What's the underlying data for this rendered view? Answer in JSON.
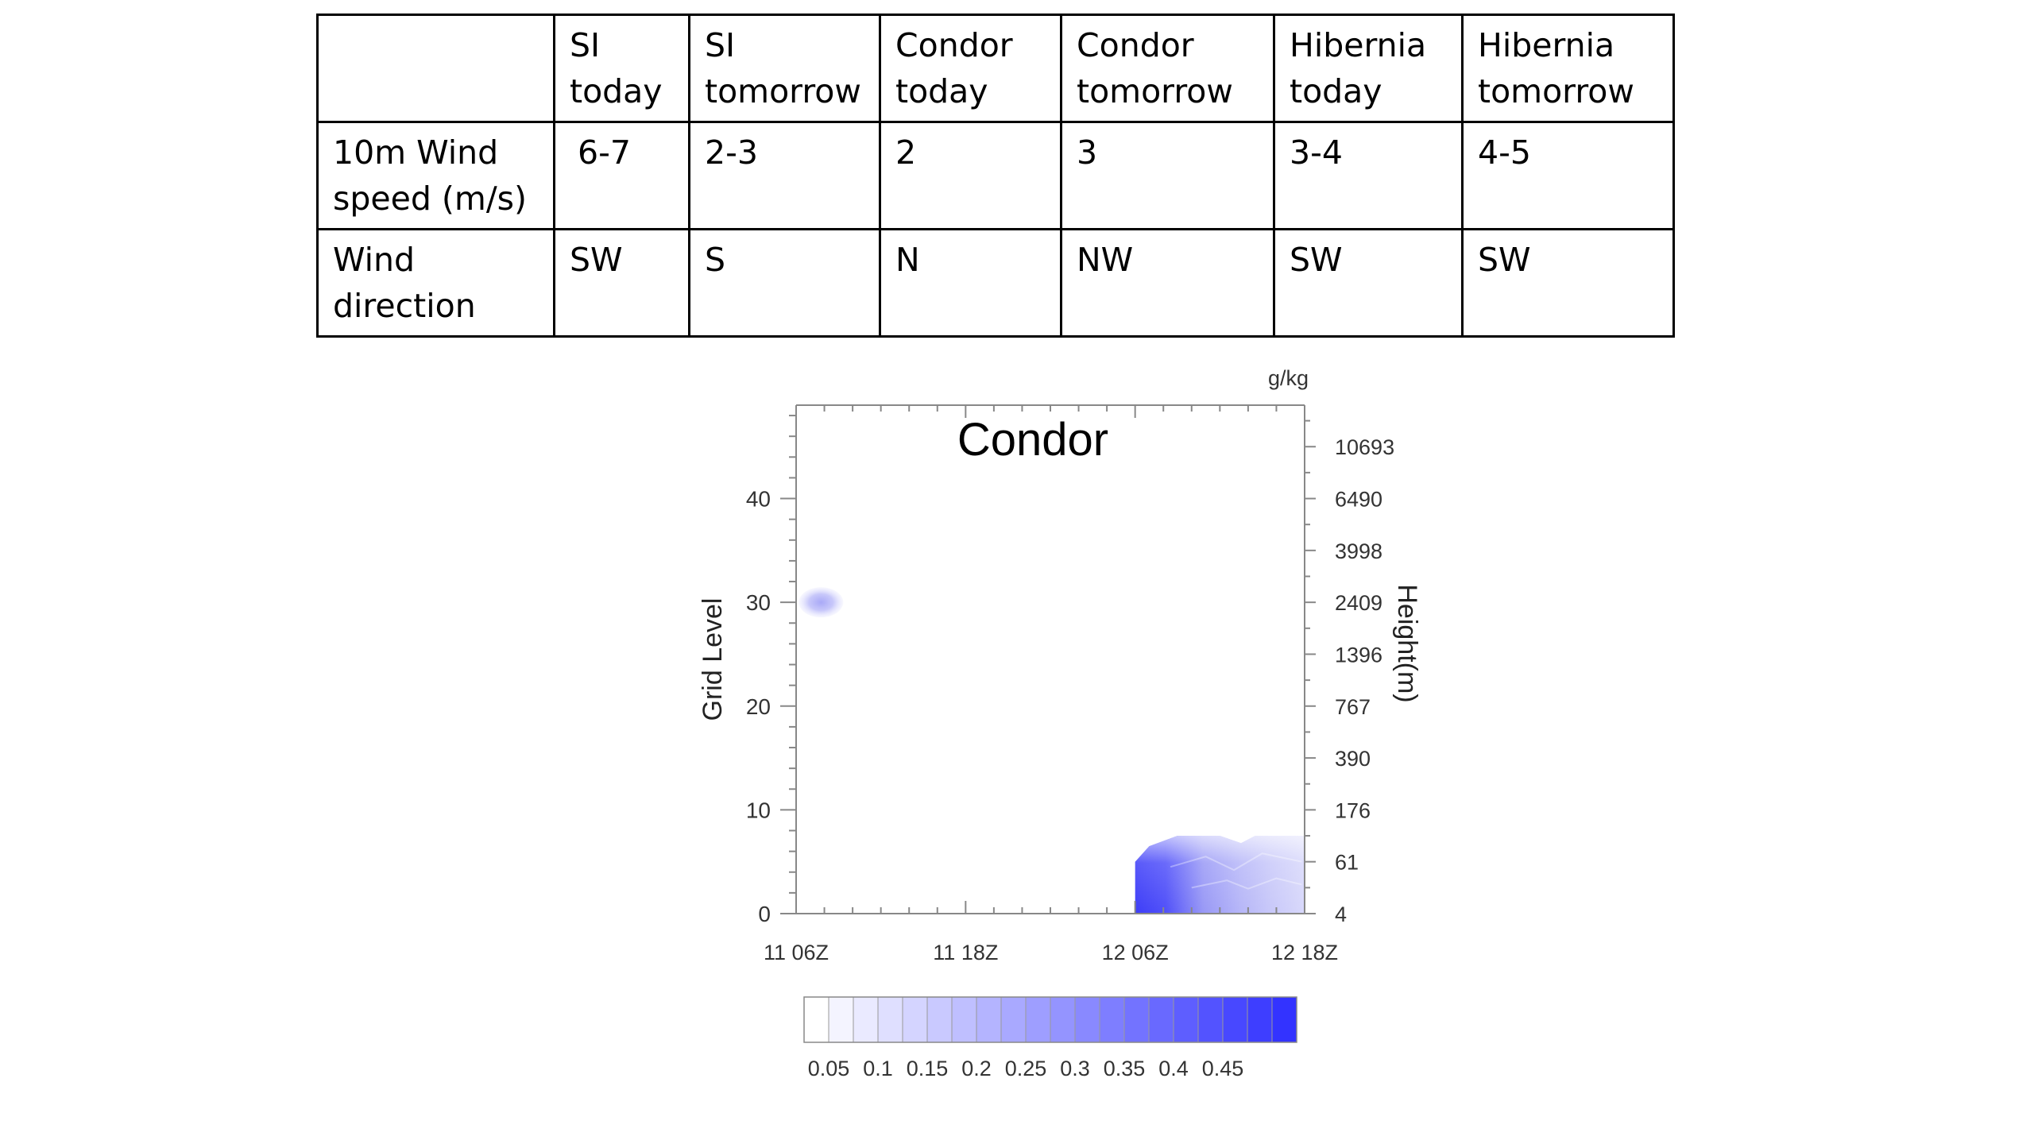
{
  "table": {
    "headers": [
      "",
      "SI today",
      "SI tomorrow",
      "Condor today",
      "Condor tomorrow",
      "Hibernia today",
      "Hibernia tomorrow"
    ],
    "rows": [
      {
        "label": "10m Wind speed (m/s)",
        "values": [
          "6-7",
          "2-3",
          "2",
          "3",
          "3-4",
          "4-5"
        ]
      },
      {
        "label": "Wind direction",
        "values": [
          "SW",
          "S",
          "N",
          "NW",
          "SW",
          "SW"
        ]
      }
    ]
  },
  "chart_data": {
    "type": "heatmap",
    "title": "Condor",
    "units": "g/kg",
    "xlabel": "",
    "ylabel": "Grid Level",
    "ylabel_right": "Height(m)",
    "x_ticks": [
      "11 06Z",
      "11 18Z",
      "12 06Z",
      "12 18Z"
    ],
    "y_ticks": [
      0,
      10,
      20,
      30,
      40
    ],
    "ylim": [
      0,
      49
    ],
    "right_ticks": [
      {
        "level": 0,
        "label": "4"
      },
      {
        "level": 5,
        "label": "61"
      },
      {
        "level": 10,
        "label": "176"
      },
      {
        "level": 15,
        "label": "390"
      },
      {
        "level": 20,
        "label": "767"
      },
      {
        "level": 25,
        "label": "1396"
      },
      {
        "level": 30,
        "label": "2409"
      },
      {
        "level": 35,
        "label": "3998"
      },
      {
        "level": 40,
        "label": "6490"
      },
      {
        "level": 45,
        "label": "10693"
      }
    ],
    "colorbar_labels": [
      "0.05",
      "0.1",
      "0.15",
      "0.2",
      "0.25",
      "0.3",
      "0.35",
      "0.4",
      "0.45"
    ],
    "colorbar_levels": 20,
    "colormap": {
      "low": "#ffffff",
      "high": "#3333ff"
    },
    "features": [
      {
        "time_hours": 1.2,
        "level": 30,
        "value": 0.1
      },
      {
        "time_hours": 28,
        "level": 3,
        "value": 0.4
      },
      {
        "time_hours": 31,
        "level": 5,
        "value": 0.25
      },
      {
        "time_hours": 34,
        "level": 3,
        "value": 0.15
      }
    ]
  }
}
